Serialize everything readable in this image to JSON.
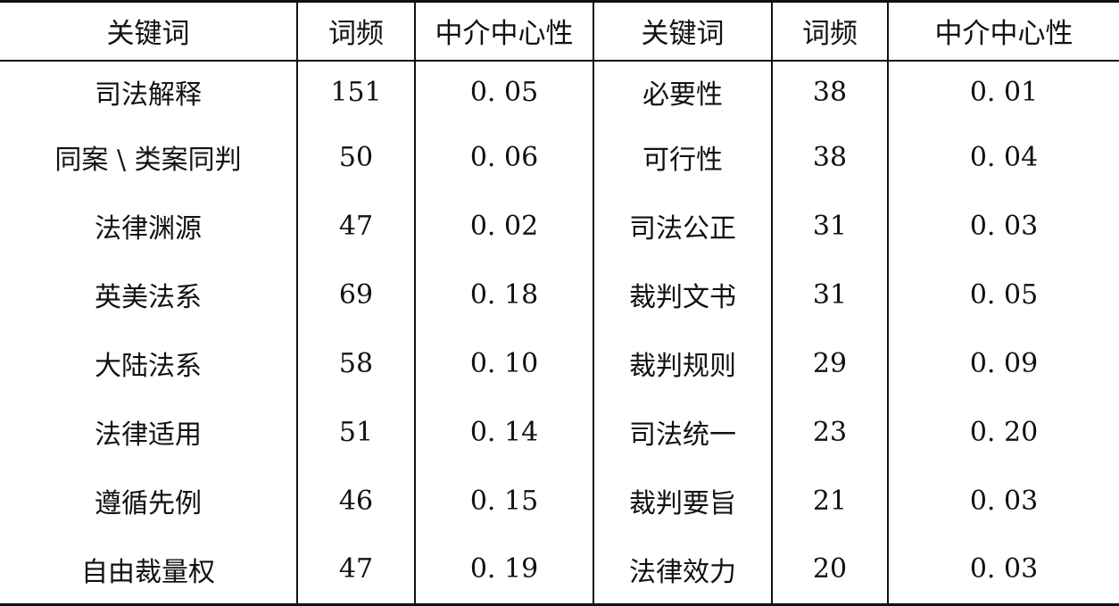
{
  "table": {
    "headers": [
      "关键词",
      "词频",
      "中介中心性",
      "关键词",
      "词频",
      "中介中心性"
    ],
    "rows": [
      [
        "司法解释",
        "151",
        "0. 05",
        "必要性",
        "38",
        "0. 01"
      ],
      [
        "同案 \\ 类案同判",
        "50",
        "0. 06",
        "可行性",
        "38",
        "0. 04"
      ],
      [
        "法律渊源",
        "47",
        "0. 02",
        "司法公正",
        "31",
        "0. 03"
      ],
      [
        "英美法系",
        "69",
        "0. 18",
        "裁判文书",
        "31",
        "0. 05"
      ],
      [
        "大陆法系",
        "58",
        "0. 10",
        "裁判规则",
        "29",
        "0. 09"
      ],
      [
        "法律适用",
        "51",
        "0. 14",
        "司法统一",
        "23",
        "0. 20"
      ],
      [
        "遵循先例",
        "46",
        "0. 15",
        "裁判要旨",
        "21",
        "0. 03"
      ],
      [
        "自由裁量权",
        "47",
        "0. 19",
        "法律效力",
        "20",
        "0. 03"
      ]
    ]
  }
}
